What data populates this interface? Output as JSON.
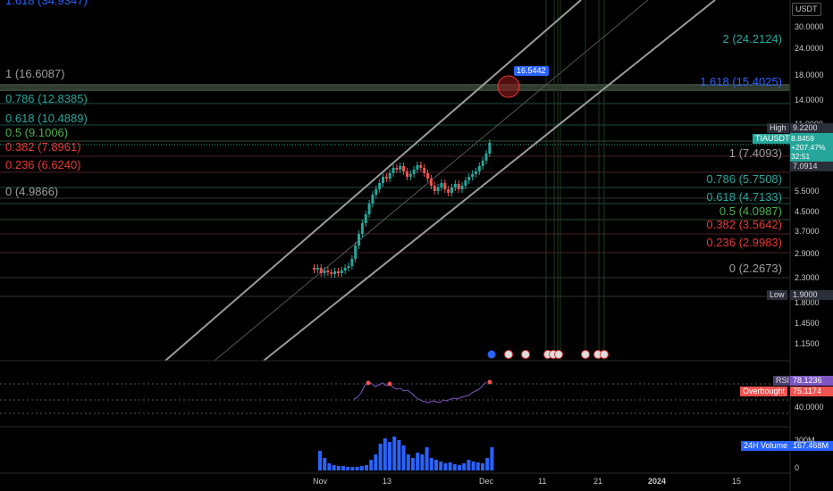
{
  "currency": "USDT",
  "symbol_tag": "TIAUSDT",
  "price_tag": {
    "price": "8.8459",
    "change": "+207.47%",
    "countdown": "32:51"
  },
  "high": {
    "label": "High",
    "value": "9.2200"
  },
  "low": {
    "label": "Low",
    "value": "1.9000"
  },
  "last_close_tag": "7.0914",
  "target_tag": "16.5442",
  "price_axis": [
    "30.0000",
    "24.0000",
    "18.0000",
    "14.0000",
    "11.0000",
    "7.0000",
    "5.5000",
    "4.5000",
    "3.7000",
    "2.9000",
    "2.3000",
    "1.8000",
    "1.4500",
    "1.1500"
  ],
  "fib_left": [
    {
      "label": "1.618 (34.9347)",
      "color": "#2962ff"
    },
    {
      "label": "1 (16.6087)",
      "color": "#9e9e9e"
    },
    {
      "label": "0.786 (12.8385)",
      "color": "#26a69a"
    },
    {
      "label": "0.618 (10.4889)",
      "color": "#26a69a"
    },
    {
      "label": "0.5 (9.1006)",
      "color": "#4caf50"
    },
    {
      "label": "0.382 (7.8961)",
      "color": "#e53935"
    },
    {
      "label": "0.236 (6.6240)",
      "color": "#e53935"
    },
    {
      "label": "0 (4.9866)",
      "color": "#9e9e9e"
    }
  ],
  "fib_right": [
    {
      "label": "2 (24.2124)",
      "color": "#26a69a"
    },
    {
      "label": "1.618 (15.4025)",
      "color": "#2962ff"
    },
    {
      "label": "1 (7.4093)",
      "color": "#9e9e9e"
    },
    {
      "label": "0.786 (5.7508)",
      "color": "#26a69a"
    },
    {
      "label": "0.618 (4.7133)",
      "color": "#26a69a"
    },
    {
      "label": "0.5 (4.0987)",
      "color": "#4caf50"
    },
    {
      "label": "0.382 (3.5642)",
      "color": "#e53935"
    },
    {
      "label": "0.236 (2.9983)",
      "color": "#e53935"
    },
    {
      "label": "0 (2.2673)",
      "color": "#9e9e9e"
    }
  ],
  "rsi": {
    "label": "RSI",
    "value": "78.1236",
    "overbought_label": "Overbought",
    "overbought_value": "75.1174",
    "axis": "40.0000"
  },
  "volume": {
    "label": "24H Volume",
    "value": "167.468M",
    "axis_top": "300M",
    "axis_zero": "0"
  },
  "time_axis": [
    "Nov",
    "13",
    "Dec",
    "11",
    "21",
    "2024",
    "15"
  ],
  "colors": {
    "up": "#26a69a",
    "down": "#ef5350",
    "channel": "#8f8f8f",
    "rsi": "#7e57c2",
    "volume": "#2962ff"
  }
}
